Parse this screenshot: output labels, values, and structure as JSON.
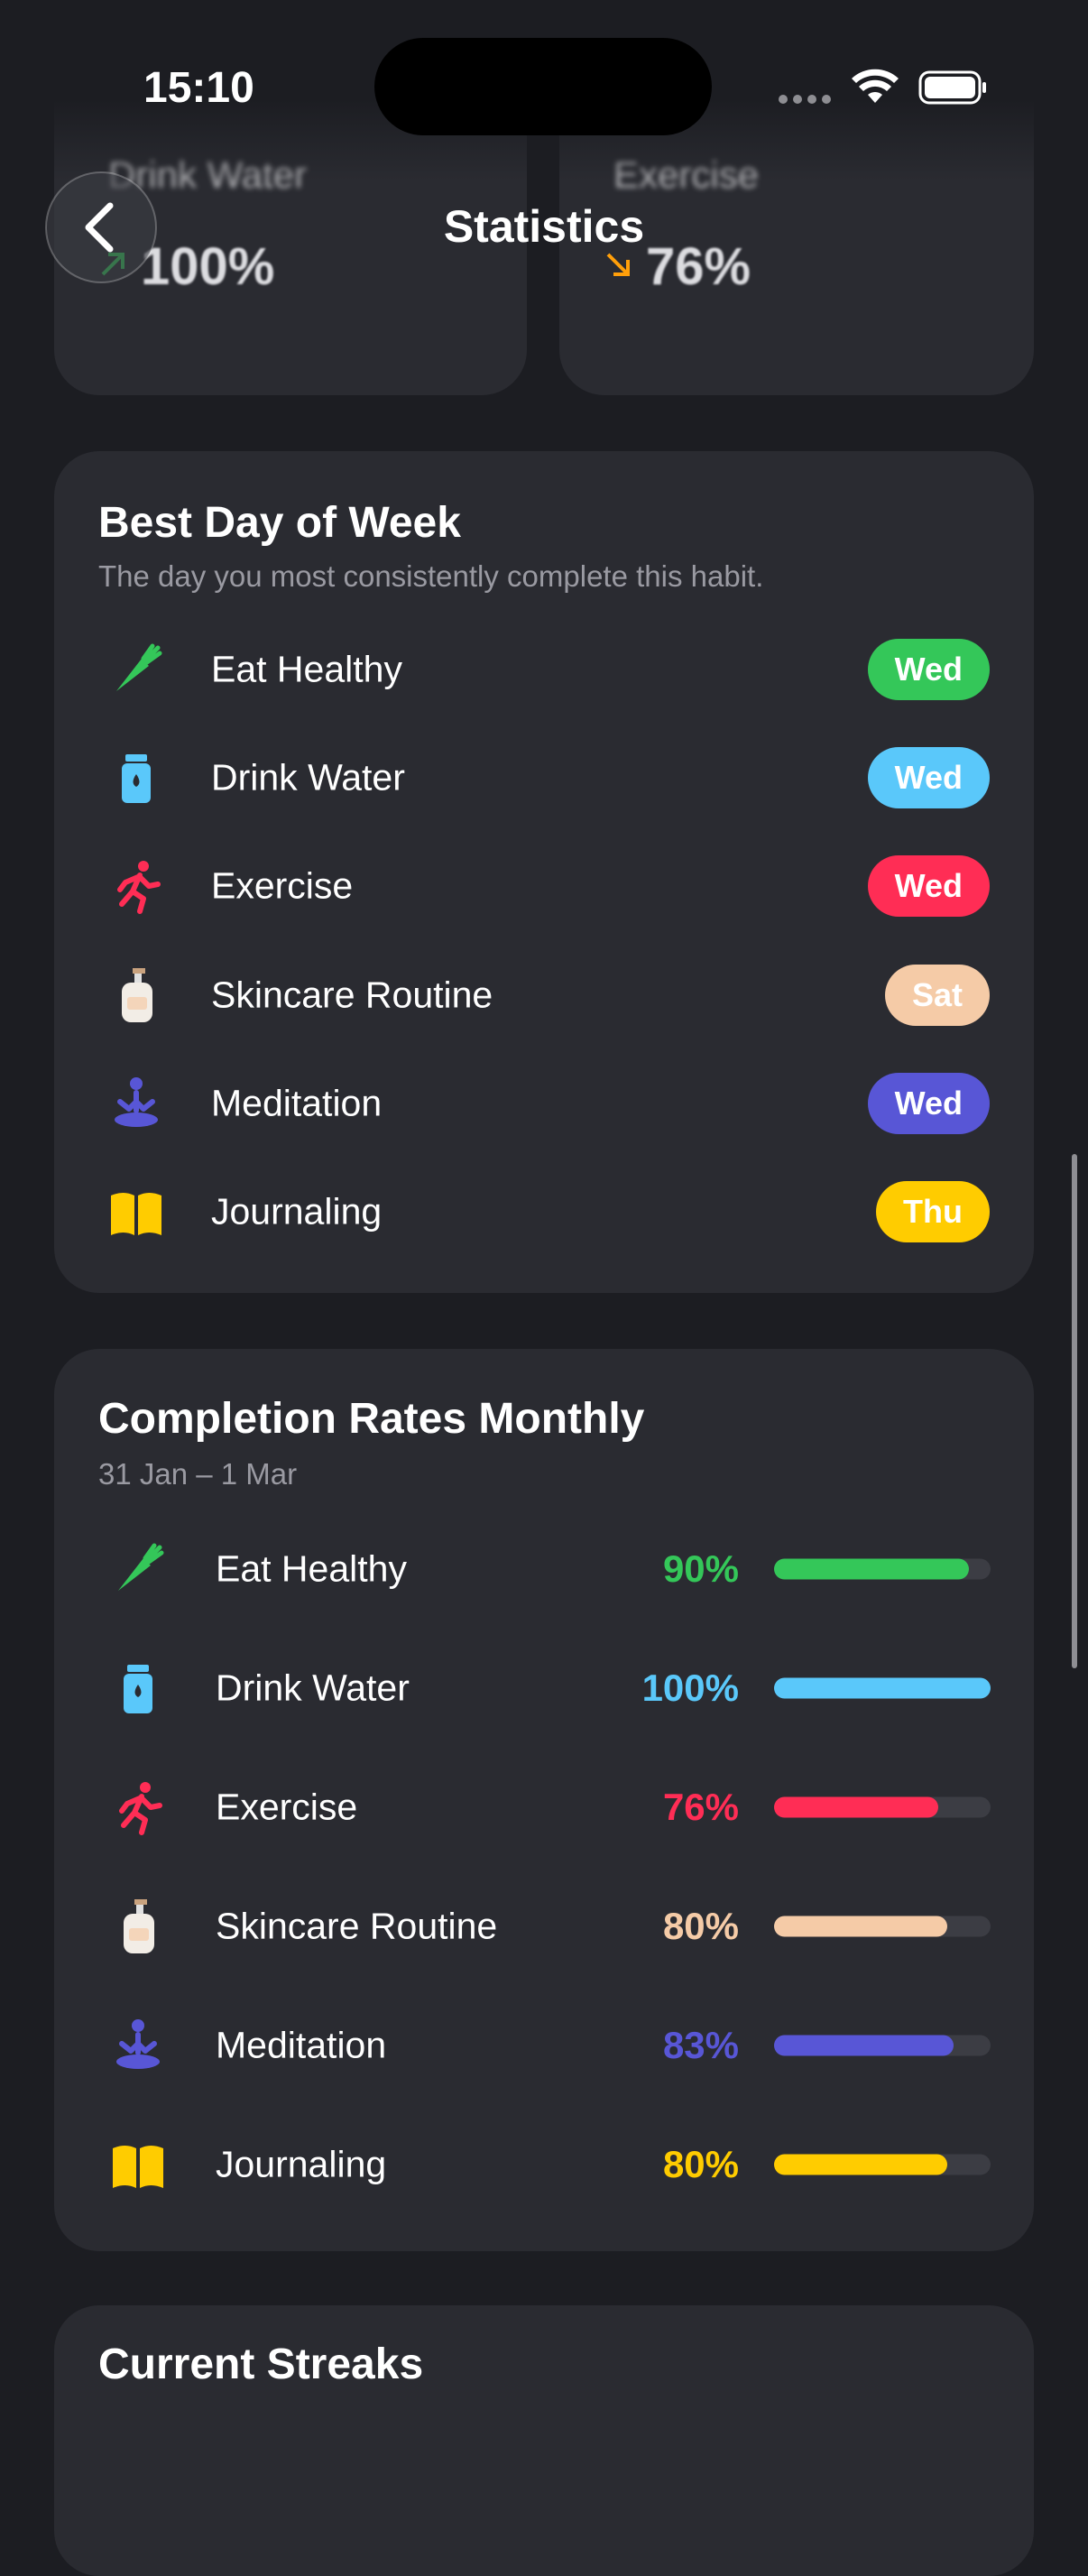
{
  "status_bar": {
    "time": "15:10"
  },
  "header": {
    "title": "Statistics"
  },
  "summary_cards": [
    {
      "label": "Drink Water",
      "value": "100%",
      "trend": "up",
      "color": "#34c759"
    },
    {
      "label": "Exercise",
      "value": "76%",
      "trend": "down",
      "color": "#ff9f0a"
    }
  ],
  "best_day": {
    "title": "Best Day of Week",
    "subtitle": "The day you most consistently complete this habit.",
    "rows": [
      {
        "habit": "Eat Healthy",
        "day": "Wed",
        "color": "#34c759",
        "icon": "carrot"
      },
      {
        "habit": "Drink Water",
        "day": "Wed",
        "color": "#5ac8fa",
        "icon": "bottle"
      },
      {
        "habit": "Exercise",
        "day": "Wed",
        "color": "#ff2d55",
        "icon": "runner"
      },
      {
        "habit": "Skincare Routine",
        "day": "Sat",
        "color": "#f5cba7",
        "icon": "lotion"
      },
      {
        "habit": "Meditation",
        "day": "Wed",
        "color": "#5856d6",
        "icon": "meditate"
      },
      {
        "habit": "Journaling",
        "day": "Thu",
        "color": "#ffcc00",
        "icon": "book"
      }
    ]
  },
  "completion": {
    "title": "Completion Rates Monthly",
    "subtitle": "31 Jan – 1 Mar",
    "rows": [
      {
        "habit": "Eat Healthy",
        "rate": {
          "value": 90,
          "label": "90%"
        },
        "color": "#34c759",
        "icon": "carrot"
      },
      {
        "habit": "Drink Water",
        "rate": {
          "value": 100,
          "label": "100%"
        },
        "color": "#5ac8fa",
        "icon": "bottle"
      },
      {
        "habit": "Exercise",
        "rate": {
          "value": 76,
          "label": "76%"
        },
        "color": "#ff2d55",
        "icon": "runner"
      },
      {
        "habit": "Skincare Routine",
        "rate": {
          "value": 80,
          "label": "80%"
        },
        "color": "#f5cba7",
        "icon": "lotion"
      },
      {
        "habit": "Meditation",
        "rate": {
          "value": 83,
          "label": "83%"
        },
        "color": "#5856d6",
        "icon": "meditate"
      },
      {
        "habit": "Journaling",
        "rate": {
          "value": 80,
          "label": "80%"
        },
        "color": "#ffcc00",
        "icon": "book"
      }
    ]
  },
  "next_card": {
    "title": "Current Streaks"
  }
}
